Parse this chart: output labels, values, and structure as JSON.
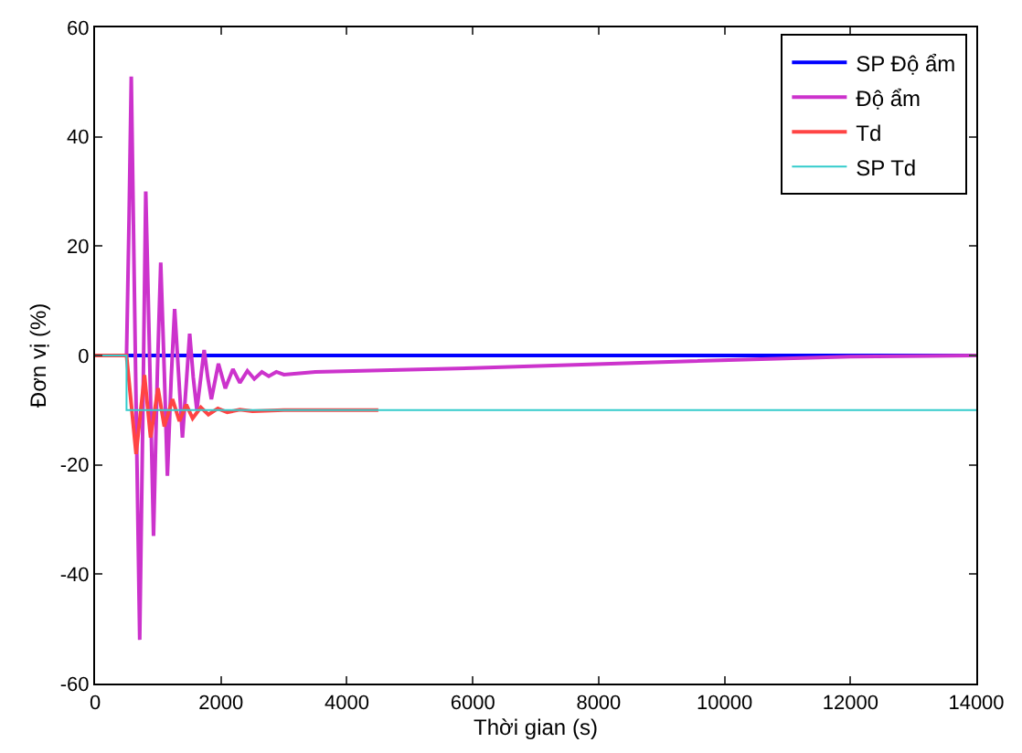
{
  "chart_data": {
    "type": "line",
    "xlabel": "Thời gian (s)",
    "ylabel": "Đơn vị (%)",
    "xlim": [
      0,
      14000
    ],
    "xticks": [
      0,
      2000,
      4000,
      6000,
      8000,
      10000,
      12000,
      14000
    ],
    "ylim": [
      -60,
      60
    ],
    "yticks": [
      -60,
      -40,
      -20,
      0,
      20,
      40,
      60
    ],
    "legend": "top right",
    "marker": "none",
    "line_style": "solid",
    "series": [
      {
        "name": "SP Độ ẩm",
        "color": "#0000ff",
        "x": [
          0,
          14000
        ],
        "values": [
          0,
          0
        ]
      },
      {
        "name": "Độ ẩm",
        "color": "#cc33cc",
        "x": [
          0,
          500,
          540,
          575,
          640,
          709,
          760,
          805,
          870,
          929,
          990,
          1043,
          1100,
          1149,
          1210,
          1264,
          1330,
          1388,
          1450,
          1503,
          1560,
          1617,
          1680,
          1733,
          1790,
          1848,
          1960,
          2069,
          2190,
          2300,
          2420,
          2530,
          2650,
          2760,
          2880,
          3000,
          3500,
          6000,
          9000,
          12000,
          14000
        ],
        "values": [
          0,
          0,
          25,
          51,
          0,
          -52,
          -10,
          30,
          -2,
          -33,
          -3,
          17,
          -3,
          -22,
          -4,
          8.5,
          -4,
          -15,
          -5,
          4,
          -4,
          -10,
          -4,
          1,
          -4,
          -8,
          -1.5,
          -6,
          -2.5,
          -5,
          -2.8,
          -4.3,
          -3,
          -3.8,
          -3,
          -3.5,
          -3,
          -2.3,
          -1.2,
          -0.2,
          0
        ]
      },
      {
        "name": "Td",
        "color": "#ff4444",
        "x": [
          0,
          500,
          652,
          785,
          882,
          1000,
          1100,
          1230,
          1340,
          1450,
          1550,
          1680,
          1800,
          1950,
          2100,
          2300,
          2500,
          3000,
          4500
        ],
        "values": [
          0,
          0,
          -18,
          -3.6,
          -15,
          -6,
          -13,
          -8,
          -12,
          -9,
          -11.5,
          -9.5,
          -10.8,
          -9.7,
          -10.4,
          -9.9,
          -10.2,
          -10,
          -10
        ]
      },
      {
        "name": "SP Td",
        "color": "#33cccc",
        "x": [
          0,
          500,
          500,
          14000
        ],
        "values": [
          0,
          0,
          -10,
          -10
        ]
      }
    ]
  }
}
